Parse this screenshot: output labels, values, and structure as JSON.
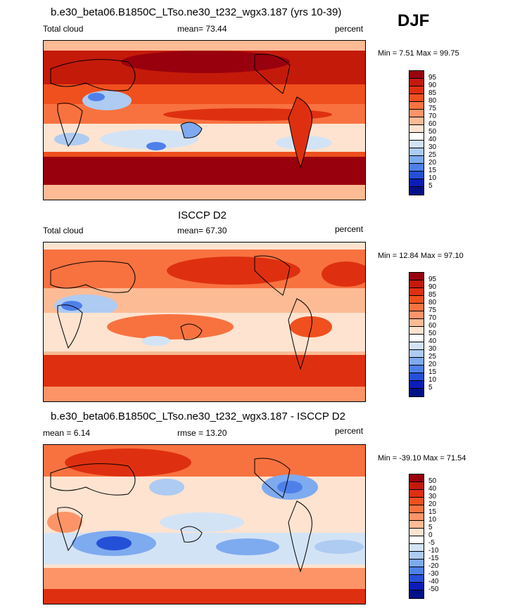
{
  "season": "DJF",
  "panels": [
    {
      "id": "model",
      "title": "b.e30_beta06.B1850C_LTso.ne30_t232_wgx3.187 (yrs 10-39)",
      "left_label": "Total cloud",
      "stat_label": "mean=  73.44",
      "units": "percent",
      "minmax": "Min =   7.51 Max =  99.75",
      "colorbar": {
        "labels": [
          "95",
          "90",
          "85",
          "80",
          "75",
          "70",
          "60",
          "50",
          "40",
          "30",
          "25",
          "20",
          "15",
          "10",
          "5"
        ],
        "colors": [
          "#99000d",
          "#c41a0a",
          "#de3010",
          "#f0501e",
          "#f87240",
          "#fc9468",
          "#fdbb95",
          "#fde3d0",
          "#ffffff",
          "#d3e3f6",
          "#aecbf2",
          "#7eaaef",
          "#4f80ea",
          "#2450d8",
          "#0a1db8",
          "#031087"
        ]
      }
    },
    {
      "id": "obs",
      "title": "ISCCP D2",
      "left_label": "Total cloud",
      "stat_label": "mean=  67.30",
      "units": "percent",
      "minmax": "Min =  12.84 Max =  97.10",
      "colorbar": {
        "labels": [
          "95",
          "90",
          "85",
          "80",
          "75",
          "70",
          "60",
          "50",
          "40",
          "30",
          "25",
          "20",
          "15",
          "10",
          "5"
        ],
        "colors": [
          "#99000d",
          "#c41a0a",
          "#de3010",
          "#f0501e",
          "#f87240",
          "#fc9468",
          "#fdbb95",
          "#fde3d0",
          "#ffffff",
          "#d3e3f6",
          "#aecbf2",
          "#7eaaef",
          "#4f80ea",
          "#2450d8",
          "#0a1db8",
          "#031087"
        ]
      }
    },
    {
      "id": "diff",
      "title": "b.e30_beta06.B1850C_LTso.ne30_t232_wgx3.187 - ISCCP D2",
      "left_label": "mean =   6.14",
      "stat_label": "rmse =  13.20",
      "units": "percent",
      "minmax": "Min = -39.10 Max =  71.54",
      "colorbar": {
        "labels": [
          "50",
          "40",
          "30",
          "20",
          "15",
          "10",
          "5",
          "0",
          "-5",
          "-10",
          "-15",
          "-20",
          "-30",
          "-40",
          "-50"
        ],
        "colors": [
          "#99000d",
          "#c41a0a",
          "#de3010",
          "#f0501e",
          "#f87240",
          "#fc9468",
          "#fdbb95",
          "#fde3d0",
          "#ffffff",
          "#d3e3f6",
          "#aecbf2",
          "#7eaaef",
          "#4f80ea",
          "#2450d8",
          "#0a1db8",
          "#031087"
        ]
      }
    }
  ]
}
